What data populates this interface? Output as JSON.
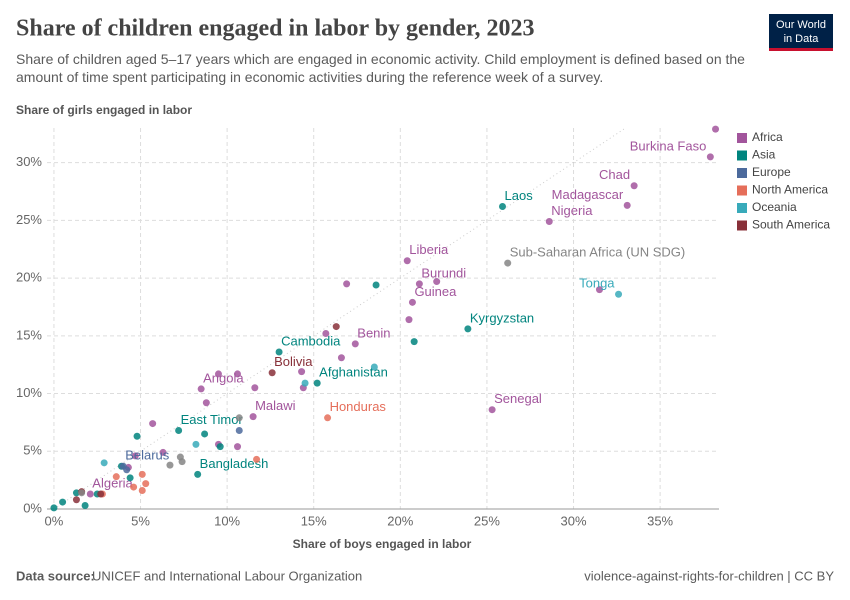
{
  "header": {
    "title": "Share of children engaged in labor by gender, 2023",
    "subtitle": "Share of children aged 5–17 years which are engaged in economic activity. Child employment is defined based on the amount of time spent participating in economic activities during the reference week of a survey.",
    "logo": [
      "Our World",
      "in Data"
    ]
  },
  "chart_data": {
    "type": "scatter",
    "y_label": "Share of girls engaged in labor",
    "x_label": "Share of boys engaged in labor",
    "xlim": [
      -0.4,
      38.4
    ],
    "ylim": [
      0,
      33
    ],
    "xticks": [
      {
        "value": 0,
        "label": "0%"
      },
      {
        "value": 5,
        "label": "5%"
      },
      {
        "value": 10,
        "label": "10%"
      },
      {
        "value": 15,
        "label": "15%"
      },
      {
        "value": 20,
        "label": "20%"
      },
      {
        "value": 25,
        "label": "25%"
      },
      {
        "value": 30,
        "label": "30%"
      },
      {
        "value": 35,
        "label": "35%"
      }
    ],
    "yticks": [
      {
        "value": 0,
        "label": "0%"
      },
      {
        "value": 5,
        "label": "5%"
      },
      {
        "value": 10,
        "label": "10%"
      },
      {
        "value": 15,
        "label": "15%"
      },
      {
        "value": 20,
        "label": "20%"
      },
      {
        "value": 25,
        "label": "25%"
      },
      {
        "value": 30,
        "label": "30%"
      }
    ],
    "grid": true,
    "legend": "right",
    "series": [
      {
        "name": "Africa",
        "color": "#a2559c",
        "x": [
          37.9,
          38.2,
          33.5,
          33.1,
          28.6,
          20.4,
          21.1,
          22.1,
          20.7,
          20.5,
          16.9,
          17.4,
          15.7,
          16.6,
          31.5,
          25.3,
          8.5,
          9.5,
          10.6,
          11.6,
          14.3,
          14.4,
          11.5,
          8.8,
          5.7,
          9.5,
          10.6,
          6.3,
          4.7,
          2.1,
          4.3
        ],
        "values": [
          30.5,
          32.9,
          28.0,
          26.3,
          24.9,
          21.5,
          19.5,
          19.7,
          17.9,
          16.4,
          19.5,
          14.3,
          15.2,
          13.1,
          19.0,
          8.6,
          10.4,
          11.7,
          11.7,
          10.5,
          11.9,
          10.5,
          8.0,
          9.2,
          7.4,
          5.6,
          5.4,
          4.9,
          4.6,
          1.3,
          3.6
        ],
        "labels": [
          "Burkina Faso",
          null,
          "Chad",
          "Madagascar",
          "Nigeria",
          "Liberia",
          "Burundi",
          null,
          "Guinea",
          null,
          null,
          "Benin",
          null,
          null,
          null,
          "Senegal",
          "Angola",
          null,
          null,
          null,
          null,
          null,
          "Malawi",
          null,
          null,
          null,
          null,
          null,
          null,
          "Algeria",
          null
        ]
      },
      {
        "name": "Asia",
        "color": "#00847e",
        "x": [
          25.9,
          18.6,
          23.9,
          20.8,
          13.0,
          15.2,
          7.2,
          8.7,
          4.8,
          9.6,
          8.3,
          4.4,
          3.9,
          2.5,
          1.3,
          0.5,
          0,
          1.8
        ],
        "values": [
          26.2,
          19.4,
          15.6,
          14.5,
          13.6,
          10.9,
          6.8,
          6.5,
          6.3,
          5.4,
          3.0,
          2.7,
          3.7,
          1.3,
          1.4,
          0.6,
          0.1,
          0.3
        ],
        "labels": [
          "Laos",
          null,
          "Kyrgyzstan",
          null,
          "Cambodia",
          "Afghanistan",
          "East Timor",
          null,
          null,
          null,
          "Bangladesh",
          null,
          null,
          null,
          null,
          null,
          null,
          null
        ]
      },
      {
        "name": "Europe",
        "color": "#4c6a9c",
        "x": [
          10.7,
          4.0,
          4.2
        ],
        "values": [
          6.8,
          3.7,
          3.4
        ],
        "labels": [
          null,
          "Belarus",
          null
        ]
      },
      {
        "name": "North America",
        "color": "#e56e5a",
        "x": [
          15.8,
          11.7,
          5.1,
          5.3,
          5.1,
          4.6,
          3.6,
          2.8
        ],
        "values": [
          7.9,
          4.3,
          3.0,
          2.2,
          1.6,
          1.9,
          2.8,
          1.3
        ],
        "labels": [
          "Honduras",
          null,
          null,
          null,
          null,
          null,
          null,
          null
        ]
      },
      {
        "name": "Oceania",
        "color": "#38aaba",
        "x": [
          32.6,
          18.5,
          14.5,
          8.2,
          2.9
        ],
        "values": [
          18.6,
          12.3,
          10.9,
          5.6,
          4.0
        ],
        "labels": [
          "Tonga",
          null,
          null,
          null,
          null
        ]
      },
      {
        "name": "South America",
        "color": "#883039",
        "x": [
          12.6,
          16.3,
          2.7,
          1.6,
          1.3
        ],
        "values": [
          11.8,
          15.8,
          1.3,
          1.5,
          0.8
        ],
        "labels": [
          "Bolivia",
          null,
          null,
          null,
          null
        ]
      },
      {
        "color": "#858585",
        "x": [
          26.2,
          10.7,
          7.4,
          7.3,
          6.7,
          1.6
        ],
        "values": [
          21.3,
          7.9,
          4.1,
          4.5,
          3.8,
          1.4
        ],
        "labels": [
          "Sub-Saharan Africa (UN SDG)",
          null,
          null,
          null,
          null,
          null
        ]
      }
    ]
  },
  "footer": {
    "source_label": "Data source:",
    "source": "UNICEF and International Labour Organization",
    "credit": "violence-against-rights-for-children | CC BY"
  }
}
